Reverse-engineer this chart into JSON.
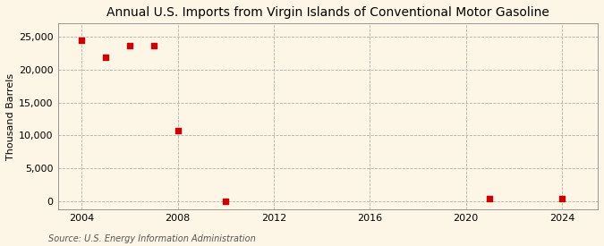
{
  "title": "Annual U.S. Imports from Virgin Islands of Conventional Motor Gasoline",
  "ylabel": "Thousand Barrels",
  "source_text": "Source: U.S. Energy Information Administration",
  "background_color": "#fdf5e6",
  "plot_bg_color": "#fdf5e6",
  "marker_color": "#cc0000",
  "marker": "s",
  "marker_size": 4,
  "x_data": [
    2004,
    2005,
    2006,
    2007,
    2008,
    2010,
    2021,
    2024
  ],
  "y_data": [
    24500,
    21900,
    23600,
    23600,
    10800,
    -50,
    380,
    380
  ],
  "xlim": [
    2003.0,
    2025.5
  ],
  "ylim": [
    -1200,
    27000
  ],
  "yticks": [
    0,
    5000,
    10000,
    15000,
    20000,
    25000
  ],
  "ytick_labels": [
    "0",
    "5,000",
    "10,000",
    "15,000",
    "20,000",
    "25,000"
  ],
  "xticks": [
    2004,
    2008,
    2012,
    2016,
    2020,
    2024
  ],
  "title_fontsize": 10,
  "label_fontsize": 8,
  "tick_fontsize": 8,
  "source_fontsize": 7
}
